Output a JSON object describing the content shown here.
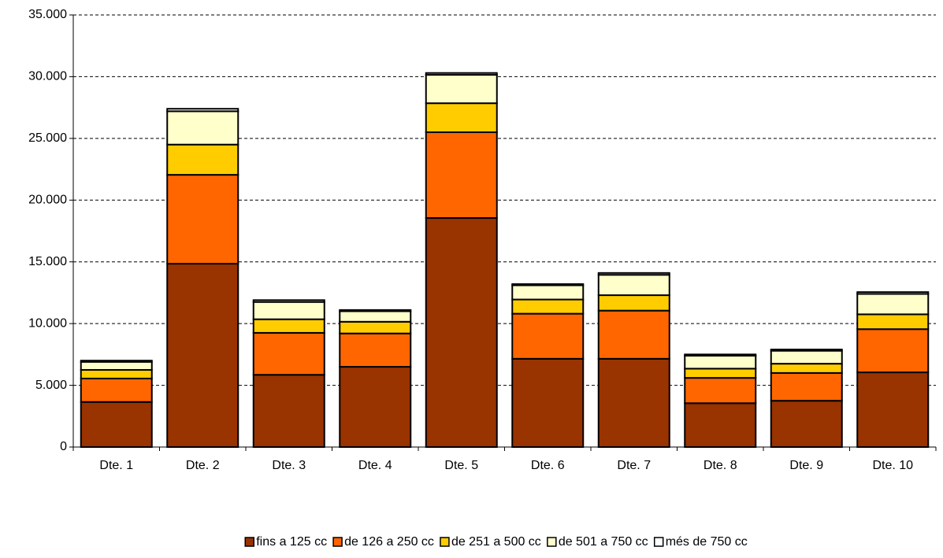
{
  "chart_data": {
    "type": "stacked_bar",
    "categories": [
      "Dte. 1",
      "Dte. 2",
      "Dte. 3",
      "Dte. 4",
      "Dte. 5",
      "Dte. 6",
      "Dte. 7",
      "Dte. 8",
      "Dte. 9",
      "Dte. 10"
    ],
    "series": [
      {
        "name": "fins a 125 cc",
        "color": "#993300",
        "values": [
          3650,
          14850,
          5850,
          6500,
          18550,
          7150,
          7150,
          3550,
          3750,
          6050
        ]
      },
      {
        "name": "de 126 a 250 cc",
        "color": "#ff6600",
        "values": [
          1900,
          7200,
          3400,
          2700,
          6950,
          3650,
          3900,
          2050,
          2250,
          3500
        ]
      },
      {
        "name": "de 251 a 500 cc",
        "color": "#ffcc00",
        "values": [
          700,
          2450,
          1100,
          950,
          2350,
          1150,
          1250,
          750,
          750,
          1200
        ]
      },
      {
        "name": "de 501 a 750 cc",
        "color": "#ffffcc",
        "values": [
          650,
          2700,
          1400,
          850,
          2300,
          1150,
          1650,
          1050,
          1050,
          1650
        ]
      },
      {
        "name": "més de 750 cc",
        "color": "#ffffff",
        "values": [
          100,
          200,
          150,
          100,
          150,
          100,
          150,
          100,
          100,
          150
        ]
      }
    ],
    "ylim": [
      0,
      35000
    ],
    "yticks": [
      0,
      {
        "value": 5000,
        "label": "5.000"
      },
      {
        "value": 10000,
        "label": "10.000"
      },
      {
        "value": 15000,
        "label": "15.000"
      },
      {
        "value": 20000,
        "label": "20.000"
      },
      {
        "value": 25000,
        "label": "25.000"
      },
      {
        "value": 30000,
        "label": "30.000"
      },
      {
        "value": 35000,
        "label": "35.000"
      }
    ],
    "grid": true,
    "legend": "bottom"
  }
}
